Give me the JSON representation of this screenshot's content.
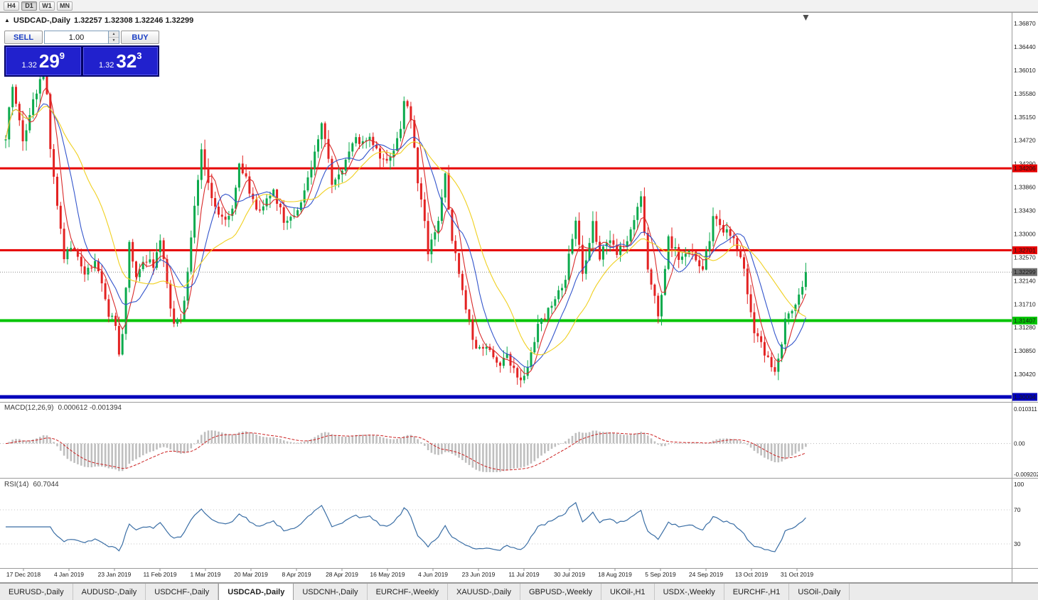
{
  "toolbar": {
    "timeframes": [
      "H4",
      "D1",
      "W1",
      "MN"
    ],
    "active": "D1"
  },
  "chart_header": {
    "marker": "▲",
    "symbol": "USDCAD-,Daily",
    "ohlc": "1.32257 1.32308 1.32246 1.32299"
  },
  "trade_widget": {
    "sell": "SELL",
    "buy": "BUY",
    "volume": "1.00",
    "spin_up": "▲",
    "spin_down": "▼",
    "bid": {
      "prefix": "1.32",
      "big": "29",
      "sup": "9"
    },
    "ask": {
      "prefix": "1.32",
      "big": "32",
      "sup": "3"
    }
  },
  "indicator_labels": {
    "macd_name": "MACD(12,26,9)",
    "macd_values": "0.000612 -0.001394",
    "rsi_name": "RSI(14)",
    "rsi_value": "60.7044"
  },
  "tabs": {
    "labels": [
      "EURUSD-,Daily",
      "AUDUSD-,Daily",
      "USDCHF-,Daily",
      "USDCAD-,Daily",
      "USDCNH-,Daily",
      "EURCHF-,Weekly",
      "XAUUSD-,Daily",
      "GBPUSD-,Weekly",
      "UKOil-,H1",
      "USDX-,Weekly",
      "EURCHF-,H1",
      "USOil-,Daily"
    ],
    "active_index": 3
  },
  "chart_data": {
    "type": "candlestick",
    "symbol": "USDCAD",
    "timeframe": "Daily",
    "bars": 234,
    "seed": 20191108,
    "price_range_visible": [
      1.3042,
      1.3687
    ],
    "close_anchors": [
      [
        0,
        1.348
      ],
      [
        1,
        1.353
      ],
      [
        2,
        1.3575
      ],
      [
        3,
        1.354
      ],
      [
        5,
        1.347
      ],
      [
        7,
        1.3525
      ],
      [
        9,
        1.3565
      ],
      [
        11,
        1.3605
      ],
      [
        12,
        1.355
      ],
      [
        13,
        1.346
      ],
      [
        15,
        1.335
      ],
      [
        17,
        1.326
      ],
      [
        20,
        1.3275
      ],
      [
        23,
        1.323
      ],
      [
        26,
        1.3245
      ],
      [
        28,
        1.321
      ],
      [
        30,
        1.3155
      ],
      [
        32,
        1.313
      ],
      [
        33,
        1.3085
      ],
      [
        34,
        1.312
      ],
      [
        36,
        1.328
      ],
      [
        38,
        1.3225
      ],
      [
        40,
        1.3255
      ],
      [
        43,
        1.3245
      ],
      [
        45,
        1.329
      ],
      [
        47,
        1.321
      ],
      [
        49,
        1.313
      ],
      [
        51,
        1.315
      ],
      [
        52,
        1.3175
      ],
      [
        54,
        1.33
      ],
      [
        56,
        1.34
      ],
      [
        57,
        1.345
      ],
      [
        58,
        1.342
      ],
      [
        60,
        1.337
      ],
      [
        62,
        1.334
      ],
      [
        64,
        1.333
      ],
      [
        66,
        1.3345
      ],
      [
        68,
        1.343
      ],
      [
        70,
        1.34
      ],
      [
        71,
        1.338
      ],
      [
        73,
        1.335
      ],
      [
        74,
        1.334
      ],
      [
        76,
        1.336
      ],
      [
        78,
        1.338
      ],
      [
        80,
        1.3345
      ],
      [
        81,
        1.332
      ],
      [
        83,
        1.333
      ],
      [
        85,
        1.334
      ],
      [
        87,
        1.338
      ],
      [
        89,
        1.342
      ],
      [
        90,
        1.345
      ],
      [
        92,
        1.351
      ],
      [
        94,
        1.344
      ],
      [
        95,
        1.339
      ],
      [
        97,
        1.3405
      ],
      [
        99,
        1.343
      ],
      [
        101,
        1.3465
      ],
      [
        102,
        1.348
      ],
      [
        104,
        1.3465
      ],
      [
        106,
        1.3475
      ],
      [
        108,
        1.345
      ],
      [
        110,
        1.3435
      ],
      [
        111,
        1.343
      ],
      [
        113,
        1.346
      ],
      [
        115,
        1.35
      ],
      [
        116,
        1.354
      ],
      [
        117,
        1.353
      ],
      [
        118,
        1.351
      ],
      [
        120,
        1.34
      ],
      [
        122,
        1.333
      ],
      [
        123,
        1.327
      ],
      [
        125,
        1.33
      ],
      [
        126,
        1.333
      ],
      [
        128,
        1.341
      ],
      [
        129,
        1.335
      ],
      [
        130,
        1.329
      ],
      [
        132,
        1.323
      ],
      [
        133,
        1.319
      ],
      [
        135,
        1.314
      ],
      [
        136,
        1.31
      ],
      [
        138,
        1.3085
      ],
      [
        140,
        1.309
      ],
      [
        142,
        1.3075
      ],
      [
        143,
        1.306
      ],
      [
        145,
        1.307
      ],
      [
        146,
        1.308
      ],
      [
        148,
        1.305
      ],
      [
        149,
        1.303
      ],
      [
        151,
        1.3045
      ],
      [
        152,
        1.306
      ],
      [
        154,
        1.31
      ],
      [
        155,
        1.313
      ],
      [
        157,
        1.3145
      ],
      [
        158,
        1.316
      ],
      [
        160,
        1.3185
      ],
      [
        161,
        1.32
      ],
      [
        163,
        1.3215
      ],
      [
        164,
        1.326
      ],
      [
        166,
        1.332
      ],
      [
        168,
        1.323
      ],
      [
        170,
        1.328
      ],
      [
        171,
        1.332
      ],
      [
        173,
        1.326
      ],
      [
        175,
        1.328
      ],
      [
        176,
        1.329
      ],
      [
        178,
        1.326
      ],
      [
        179,
        1.327
      ],
      [
        181,
        1.329
      ],
      [
        182,
        1.331
      ],
      [
        184,
        1.335
      ],
      [
        185,
        1.337
      ],
      [
        186,
        1.33
      ],
      [
        187,
        1.323
      ],
      [
        189,
        1.318
      ],
      [
        190,
        1.315
      ],
      [
        192,
        1.323
      ],
      [
        193,
        1.329
      ],
      [
        195,
        1.327
      ],
      [
        196,
        1.325
      ],
      [
        198,
        1.326
      ],
      [
        199,
        1.327
      ],
      [
        201,
        1.3255
      ],
      [
        203,
        1.324
      ],
      [
        205,
        1.329
      ],
      [
        206,
        1.333
      ],
      [
        208,
        1.332
      ],
      [
        209,
        1.331
      ],
      [
        211,
        1.33
      ],
      [
        212,
        1.329
      ],
      [
        214,
        1.326
      ],
      [
        215,
        1.323
      ],
      [
        217,
        1.316
      ],
      [
        218,
        1.312
      ],
      [
        220,
        1.31
      ],
      [
        221,
        1.308
      ],
      [
        223,
        1.306
      ],
      [
        224,
        1.305
      ],
      [
        226,
        1.309
      ],
      [
        227,
        1.314
      ],
      [
        229,
        1.316
      ],
      [
        230,
        1.317
      ],
      [
        232,
        1.32
      ],
      [
        233,
        1.323
      ]
    ],
    "price_axis_labels": [
      "1.36870",
      "1.36440",
      "1.36010",
      "1.35580",
      "1.35150",
      "1.34720",
      "1.34290",
      "1.33860",
      "1.33430",
      "1.33000",
      "1.32570",
      "1.32140",
      "1.31710",
      "1.31280",
      "1.30850",
      "1.30420"
    ],
    "horizontal_lines": [
      {
        "price": 1.34206,
        "label": "1.34206",
        "color": "#e60000",
        "width": 3
      },
      {
        "price": 1.32701,
        "label": "1.32701",
        "color": "#e60000",
        "width": 3
      },
      {
        "price": 1.31407,
        "label": "1.31407",
        "color": "#00c400",
        "width": 4
      },
      {
        "price": 1.30004,
        "label": "1.30004",
        "color": "#0000bb",
        "width": 5
      }
    ],
    "current_price": {
      "value": 1.32299,
      "label": "1.32299",
      "badge_color": "#6e6e6e"
    },
    "candle_colors": {
      "up": "#0caa4d",
      "down": "#e32222"
    },
    "moving_averages": [
      {
        "period": 5,
        "color": "#d92a2a"
      },
      {
        "period": 10,
        "color": "#3355cc"
      },
      {
        "period": 21,
        "color": "#f0d020"
      }
    ],
    "macd": {
      "params": [
        12,
        26,
        9
      ],
      "hist_color": "#bfbfbf",
      "signal_color": "#cc2222",
      "axis_top": "0.010311",
      "axis_zero": "0.00",
      "axis_bottom": "-0.009202",
      "scale_top": 0.010311,
      "scale_bottom": -0.009202
    },
    "rsi": {
      "period": 14,
      "color": "#3a6ea5",
      "axis_labels": [
        "100",
        "70",
        "30"
      ],
      "levels": [
        70,
        30
      ]
    },
    "date_labels": [
      "17 Dec 2018",
      "4 Jan 2019",
      "23 Jan 2019",
      "11 Feb 2019",
      "1 Mar 2019",
      "20 Mar 2019",
      "8 Apr 2019",
      "28 Apr 2019",
      "16 May 2019",
      "4 Jun 2019",
      "23 Jun 2019",
      "11 Jul 2019",
      "30 Jul 2019",
      "18 Aug 2019",
      "5 Sep 2019",
      "24 Sep 2019",
      "13 Oct 2019",
      "31 Oct 2019"
    ]
  }
}
